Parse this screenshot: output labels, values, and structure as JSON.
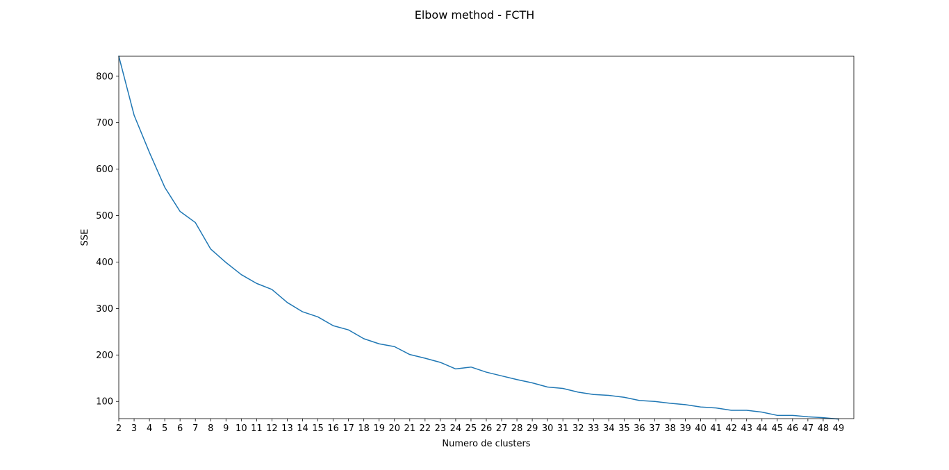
{
  "chart_data": {
    "type": "line",
    "title": "Elbow method - FCTH",
    "xlabel": "Numero de clusters",
    "ylabel": "SSE",
    "xlim": [
      2,
      50
    ],
    "ylim": [
      63,
      843
    ],
    "grid": false,
    "x_ticks": [
      2,
      3,
      4,
      5,
      6,
      7,
      8,
      9,
      10,
      11,
      12,
      13,
      14,
      15,
      16,
      17,
      18,
      19,
      20,
      21,
      22,
      23,
      24,
      25,
      26,
      27,
      28,
      29,
      30,
      31,
      32,
      33,
      34,
      35,
      36,
      37,
      38,
      39,
      40,
      41,
      42,
      43,
      44,
      45,
      46,
      47,
      48,
      49
    ],
    "y_ticks": [
      100,
      200,
      300,
      400,
      500,
      600,
      700,
      800
    ],
    "series": [
      {
        "color": "#1f77b4",
        "x": [
          2,
          3,
          4,
          5,
          6,
          7,
          8,
          9,
          10,
          11,
          12,
          13,
          14,
          15,
          16,
          17,
          18,
          19,
          20,
          21,
          22,
          23,
          24,
          25,
          26,
          27,
          28,
          29,
          30,
          31,
          32,
          33,
          34,
          35,
          36,
          37,
          38,
          39,
          40,
          41,
          42,
          43,
          44,
          45,
          46,
          47,
          48,
          49
        ],
        "values": [
          843,
          716,
          636,
          561,
          509,
          485,
          428,
          399,
          373,
          354,
          341,
          313,
          293,
          282,
          263,
          254,
          235,
          224,
          218,
          201,
          193,
          184,
          170,
          174,
          163,
          155,
          147,
          140,
          131,
          128,
          120,
          115,
          113,
          109,
          102,
          100,
          96,
          93,
          88,
          86,
          81,
          81,
          77,
          70,
          70,
          67,
          65,
          62
        ]
      }
    ]
  }
}
